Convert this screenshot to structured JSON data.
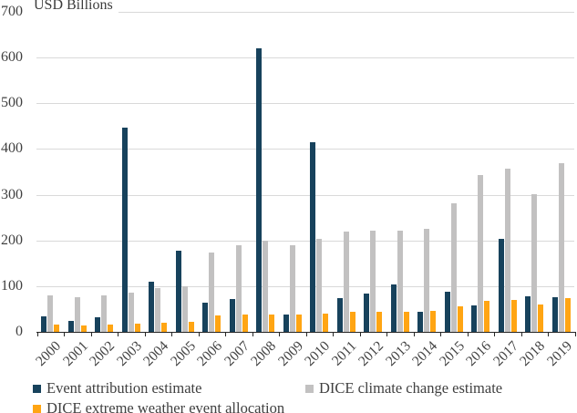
{
  "colors": {
    "navy": "#17425c",
    "gray": "#c2c1c1",
    "orange": "#ffa513",
    "gridline": "#d9d9d9",
    "axis": "#262626",
    "text": "#404040"
  },
  "chart_data": {
    "type": "bar",
    "axis_title": "USD Billions",
    "categories": [
      "2000",
      "2001",
      "2002",
      "2003",
      "2004",
      "2005",
      "2006",
      "2007",
      "2008",
      "2009",
      "2010",
      "2011",
      "2012",
      "2013",
      "2014",
      "2015",
      "2016",
      "2017",
      "2018",
      "2019"
    ],
    "series": [
      {
        "name": "Event attribution estimate",
        "color_key": "navy",
        "values": [
          33,
          23,
          31,
          447,
          109,
          178,
          64,
          71,
          620,
          38,
          415,
          74,
          83,
          103,
          43,
          88,
          58,
          204,
          78,
          76
        ]
      },
      {
        "name": "DICE climate change estimate",
        "color_key": "gray",
        "values": [
          80,
          76,
          79,
          86,
          95,
          100,
          173,
          190,
          199,
          190,
          204,
          219,
          221,
          222,
          225,
          282,
          344,
          358,
          301,
          368
        ]
      },
      {
        "name": "DICE extreme weather event allocation",
        "color_key": "orange",
        "values": [
          15,
          14,
          15,
          18,
          20,
          22,
          35,
          38,
          38,
          38,
          40,
          43,
          44,
          44,
          45,
          56,
          68,
          70,
          59,
          73
        ]
      }
    ],
    "ylim": [
      0,
      700
    ],
    "yticks": [
      0,
      100,
      200,
      300,
      400,
      500,
      600,
      700
    ],
    "grid": true,
    "legend_position": "bottom"
  }
}
